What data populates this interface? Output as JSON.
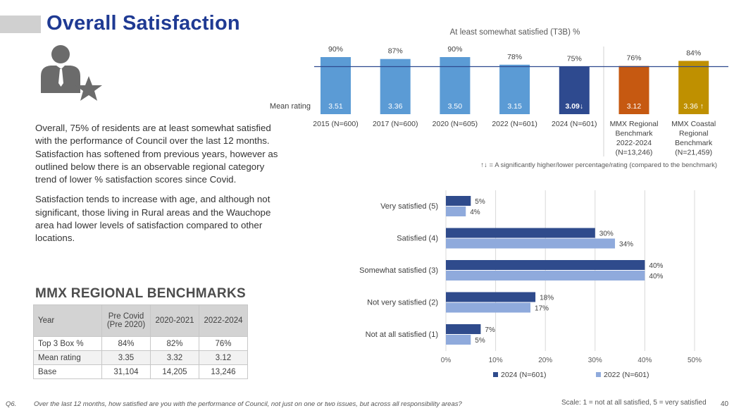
{
  "title": "Overall Satisfaction",
  "body": {
    "p1": "Overall, 75% of residents are at least somewhat satisfied with the performance of Council over the last 12 months. Satisfaction has softened from previous years, however as outlined below there is an observable regional category trend of lower % satisfaction scores since Covid.",
    "p2": "Satisfaction tends to increase with age, and although not significant, those living in Rural areas and the Wauchope area had lower levels of satisfaction compared to other locations."
  },
  "benchmarks": {
    "title": "MMX REGIONAL BENCHMARKS",
    "headers": [
      "Year",
      "Pre Covid (Pre 2020)",
      "2020-2021",
      "2022-2024"
    ],
    "rows": [
      [
        "Top 3 Box %",
        "84%",
        "82%",
        "76%"
      ],
      [
        "Mean rating",
        "3.35",
        "3.32",
        "3.12"
      ],
      [
        "Base",
        "31,104",
        "14,205",
        "13,246"
      ]
    ]
  },
  "footer": {
    "q": "Q6.",
    "question": "Over the last 12 months, how satisfied are you with the performance of Council, not just on one or two issues, but across all responsibility areas?",
    "scale": "Scale: 1 = not at all satisfied, 5 = very satisfied",
    "page": "40"
  },
  "colors": {
    "title": "#1f3a93",
    "bar_light": "#5b9bd5",
    "bar_dark": "#2e4a8f",
    "bar_orange": "#c65911",
    "bar_gold": "#bf9000",
    "series_2024": "#2f4b8c",
    "series_2022": "#8faadc"
  },
  "chart_data": [
    {
      "type": "bar",
      "title": "At least somewhat satisfied (T3B) %",
      "categories": [
        [
          "2015 (N=600)"
        ],
        [
          "2017 (N=600)"
        ],
        [
          "2020 (N=605)"
        ],
        [
          "2022 (N=601)"
        ],
        [
          "2024 (N=601)"
        ],
        [
          "MMX Regional",
          "Benchmark",
          "2022-2024",
          "(N=13,246)"
        ],
        [
          "MMX Coastal",
          "Regional",
          "Benchmark",
          "(N=21,459)"
        ]
      ],
      "values": [
        90,
        87,
        90,
        78,
        75,
        76,
        84
      ],
      "value_labels": [
        "90%",
        "87%",
        "90%",
        "78%",
        "75%",
        "76%",
        "84%"
      ],
      "bar_colors": [
        "#5b9bd5",
        "#5b9bd5",
        "#5b9bd5",
        "#5b9bd5",
        "#2e4a8f",
        "#c65911",
        "#bf9000"
      ],
      "mean_label": "Mean rating",
      "mean_ratings": [
        "3.51",
        "3.36",
        "3.50",
        "3.15",
        "3.09↓",
        "3.12",
        "3.36 ↑"
      ],
      "reference_line": 75,
      "ylim": [
        0,
        100
      ],
      "note": "↑↓ = A significantly higher/lower percentage/rating (compared to the benchmark)"
    },
    {
      "type": "bar",
      "orientation": "horizontal",
      "categories": [
        "Very satisfied (5)",
        "Satisfied (4)",
        "Somewhat satisfied (3)",
        "Not very satisfied (2)",
        "Not at all satisfied (1)"
      ],
      "series": [
        {
          "name": "2024 (N=601)",
          "values": [
            5,
            30,
            40,
            18,
            7
          ]
        },
        {
          "name": "2022 (N=601)",
          "values": [
            4,
            34,
            40,
            17,
            5
          ]
        }
      ],
      "xlim": [
        0,
        50
      ],
      "xticks": [
        "0%",
        "10%",
        "20%",
        "30%",
        "40%",
        "50%"
      ],
      "grid": true,
      "legend": "bottom"
    }
  ]
}
